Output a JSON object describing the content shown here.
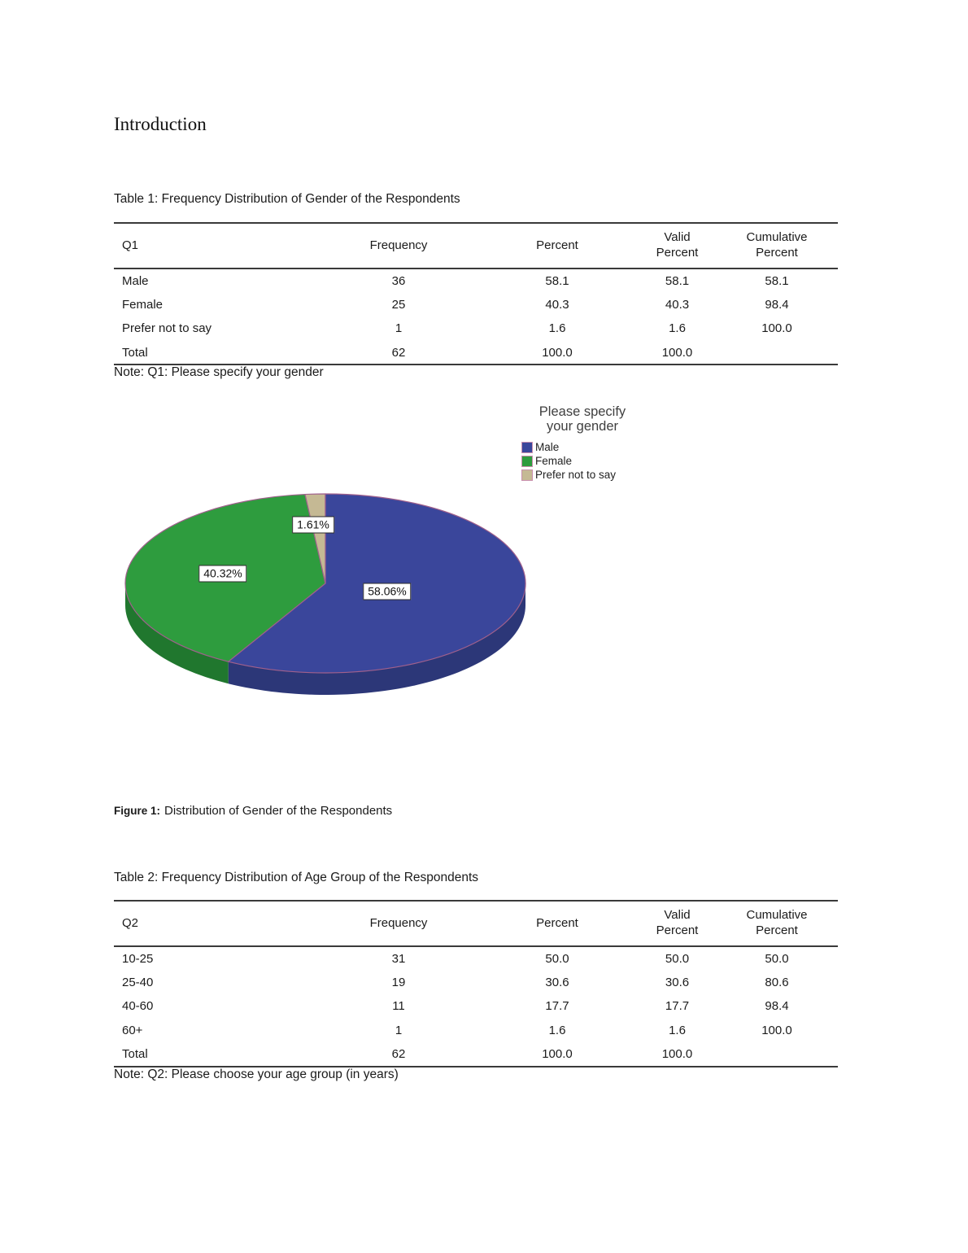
{
  "heading": "Introduction",
  "table1": {
    "caption": "Table 1: Frequency Distribution of Gender of the Respondents",
    "columns": [
      "Q1",
      "Frequency",
      "Percent",
      "Valid Percent",
      "Cumulative Percent"
    ],
    "rows": [
      [
        "Male",
        "36",
        "58.1",
        "58.1",
        "58.1"
      ],
      [
        "Female",
        "25",
        "40.3",
        "40.3",
        "98.4"
      ],
      [
        "Prefer not to say",
        "1",
        "1.6",
        "1.6",
        "100.0"
      ],
      [
        "Total",
        "62",
        "100.0",
        "100.0",
        ""
      ]
    ],
    "note": "Note: Q1: Please specify your gender"
  },
  "figure1": {
    "caption_label": "Figure 1:",
    "caption_text": "Distribution of Gender of the Respondents"
  },
  "chart_data": {
    "type": "pie",
    "style": "3d",
    "title": "Please specify your gender",
    "title_lines": [
      "Please specify",
      "your gender"
    ],
    "legend_position": "top-right",
    "labels": [
      "Male",
      "Female",
      "Prefer not to say"
    ],
    "values": [
      58.06,
      40.32,
      1.61
    ],
    "counts": [
      36,
      25,
      1
    ],
    "slice_labels": [
      "58.06%",
      "40.32%",
      "1.61%"
    ],
    "colors": [
      "#3a469b",
      "#2e9c3e",
      "#c5b994"
    ],
    "depth_colors": [
      "#2c3778",
      "#20772e",
      "#9e9370"
    ],
    "outline_color": "#a0608c"
  },
  "table2": {
    "caption": "Table 2: Frequency Distribution of Age Group of the Respondents",
    "columns": [
      "Q2",
      "Frequency",
      "Percent",
      "Valid Percent",
      "Cumulative Percent"
    ],
    "rows": [
      [
        "10-25",
        "31",
        "50.0",
        "50.0",
        "50.0"
      ],
      [
        "25-40",
        "19",
        "30.6",
        "30.6",
        "80.6"
      ],
      [
        "40-60",
        "11",
        "17.7",
        "17.7",
        "98.4"
      ],
      [
        "60+",
        "1",
        "1.6",
        "1.6",
        "100.0"
      ],
      [
        "Total",
        "62",
        "100.0",
        "100.0",
        ""
      ]
    ],
    "note": "Note: Q2: Please choose your age group (in years)"
  }
}
